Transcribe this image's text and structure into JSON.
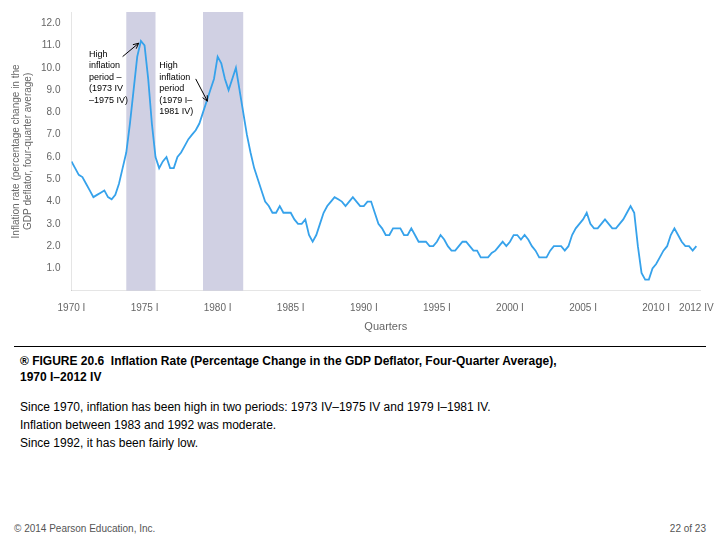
{
  "chart_data": {
    "type": "line",
    "title": "® FIGURE 20.6  Inflation Rate (Percentage Change in the GDP Deflator, Four-Quarter Average),\n1970 I–2012 IV",
    "subtitle": "Since 1970, inflation has been high in two periods: 1973 IV–1975 IV and 1979 I–1981 IV.\nInflation between 1983 and 1992 was moderate.\nSince 1992, it has been fairly low.",
    "footer": [
      "© 2014 Pearson Education, Inc.",
      "22 of 23"
    ],
    "x_label": "Quarters",
    "y_label": "Inflation rate (percentage change in the\nGDP deflator, four-quarter average)",
    "annotations": [
      {
        "text": "High\ninflation\nperiod –\n(1973 IV\n–1975 IV)"
      },
      {
        "text": "High\ninflation\nperiod\n(1979 I–\n1981 IV)"
      }
    ],
    "shaded_regions": [
      {
        "range": [
          1973.75,
          1975.75
        ],
        "color": "#b0b0d0"
      },
      {
        "range": [
          1979.0,
          1981.75
        ],
        "color": "#b0b0d0"
      }
    ],
    "grid": false,
    "xlim": [
      1970.0,
      2013.0
    ],
    "ylim": [
      0.0,
      12.5
    ],
    "xticks": [
      {
        "value": 1970.0,
        "label": "1970 I"
      },
      {
        "value": 1975.0,
        "label": "1975 I"
      },
      {
        "value": 1980.0,
        "label": "1980 I"
      },
      {
        "value": 1985.0,
        "label": "1985 I"
      },
      {
        "value": 1990.0,
        "label": "1990 I"
      },
      {
        "value": 1995.0,
        "label": "1995 I"
      },
      {
        "value": 2000.0,
        "label": "2000 I"
      },
      {
        "value": 2005.0,
        "label": "2005 I"
      },
      {
        "value": 2010.0,
        "label": "2010 I"
      },
      {
        "value": 2012.75,
        "label": "2012 IV"
      }
    ],
    "yticks": [
      {
        "value": 1.0,
        "label": "1.0"
      },
      {
        "value": 2.0,
        "label": "2.0"
      },
      {
        "value": 3.0,
        "label": "3.0"
      },
      {
        "value": 4.0,
        "label": "4.0"
      },
      {
        "value": 5.0,
        "label": "5.0"
      },
      {
        "value": 6.0,
        "label": "6.0"
      },
      {
        "value": 7.0,
        "label": "7.0"
      },
      {
        "value": 8.0,
        "label": "8.0"
      },
      {
        "value": 9.0,
        "label": "9.0"
      },
      {
        "value": 10.0,
        "label": "10.0"
      },
      {
        "value": 11.0,
        "label": "11.0"
      },
      {
        "value": 12.0,
        "label": "12.0"
      }
    ],
    "x": [
      1970.0,
      1970.25,
      1970.5,
      1970.75,
      1971.0,
      1971.25,
      1971.5,
      1971.75,
      1972.0,
      1972.25,
      1972.5,
      1972.75,
      1973.0,
      1973.25,
      1973.5,
      1973.75,
      1974.0,
      1974.25,
      1974.5,
      1974.75,
      1975.0,
      1975.25,
      1975.5,
      1975.75,
      1976.0,
      1976.25,
      1976.5,
      1976.75,
      1977.0,
      1977.25,
      1977.5,
      1977.75,
      1978.0,
      1978.25,
      1978.5,
      1978.75,
      1979.0,
      1979.25,
      1979.5,
      1979.75,
      1980.0,
      1980.25,
      1980.5,
      1980.75,
      1981.0,
      1981.25,
      1981.5,
      1981.75,
      1982.0,
      1982.25,
      1982.5,
      1982.75,
      1983.0,
      1983.25,
      1983.5,
      1983.75,
      1984.0,
      1984.25,
      1984.5,
      1984.75,
      1985.0,
      1985.25,
      1985.5,
      1985.75,
      1986.0,
      1986.25,
      1986.5,
      1986.75,
      1987.0,
      1987.25,
      1987.5,
      1987.75,
      1988.0,
      1988.25,
      1988.5,
      1988.75,
      1989.0,
      1989.25,
      1989.5,
      1989.75,
      1990.0,
      1990.25,
      1990.5,
      1990.75,
      1991.0,
      1991.25,
      1991.5,
      1991.75,
      1992.0,
      1992.25,
      1992.5,
      1992.75,
      1993.0,
      1993.25,
      1993.5,
      1993.75,
      1994.0,
      1994.25,
      1994.5,
      1994.75,
      1995.0,
      1995.25,
      1995.5,
      1995.75,
      1996.0,
      1996.25,
      1996.5,
      1996.75,
      1997.0,
      1997.25,
      1997.5,
      1997.75,
      1998.0,
      1998.25,
      1998.5,
      1998.75,
      1999.0,
      1999.25,
      1999.5,
      1999.75,
      2000.0,
      2000.25,
      2000.5,
      2000.75,
      2001.0,
      2001.25,
      2001.5,
      2001.75,
      2002.0,
      2002.25,
      2002.5,
      2002.75,
      2003.0,
      2003.25,
      2003.5,
      2003.75,
      2004.0,
      2004.25,
      2004.5,
      2004.75,
      2005.0,
      2005.25,
      2005.5,
      2005.75,
      2006.0,
      2006.25,
      2006.5,
      2006.75,
      2007.0,
      2007.25,
      2007.5,
      2007.75,
      2008.0,
      2008.25,
      2008.5,
      2008.75,
      2009.0,
      2009.25,
      2009.5,
      2009.75,
      2010.0,
      2010.25,
      2010.5,
      2010.75,
      2011.0,
      2011.25,
      2011.5,
      2011.75,
      2012.0,
      2012.25,
      2012.5,
      2012.75
    ],
    "values": [
      5.8,
      5.5,
      5.2,
      5.1,
      4.8,
      4.5,
      4.2,
      4.3,
      4.4,
      4.5,
      4.2,
      4.1,
      4.3,
      4.8,
      5.5,
      6.2,
      7.5,
      9.0,
      10.5,
      11.2,
      11.0,
      9.5,
      7.5,
      6.0,
      5.5,
      5.8,
      6.0,
      5.5,
      5.5,
      6.0,
      6.2,
      6.5,
      6.8,
      7.0,
      7.2,
      7.5,
      8.0,
      8.5,
      9.0,
      9.5,
      10.5,
      10.2,
      9.5,
      9.0,
      9.5,
      10.0,
      9.0,
      8.0,
      7.0,
      6.2,
      5.5,
      5.0,
      4.5,
      4.0,
      3.8,
      3.5,
      3.5,
      3.8,
      3.5,
      3.5,
      3.5,
      3.2,
      3.0,
      3.0,
      3.2,
      2.5,
      2.2,
      2.5,
      3.0,
      3.5,
      3.8,
      4.0,
      4.2,
      4.1,
      4.0,
      3.8,
      4.0,
      4.2,
      4.0,
      3.8,
      3.8,
      4.0,
      4.0,
      3.5,
      3.0,
      2.8,
      2.5,
      2.5,
      2.8,
      2.8,
      2.8,
      2.5,
      2.5,
      2.8,
      2.5,
      2.2,
      2.2,
      2.2,
      2.0,
      2.0,
      2.2,
      2.5,
      2.3,
      2.0,
      1.8,
      1.8,
      2.0,
      2.2,
      2.2,
      2.0,
      1.8,
      1.8,
      1.5,
      1.5,
      1.5,
      1.7,
      1.8,
      2.0,
      2.2,
      2.0,
      2.2,
      2.5,
      2.5,
      2.3,
      2.5,
      2.3,
      2.0,
      1.8,
      1.5,
      1.5,
      1.5,
      1.8,
      2.0,
      2.0,
      2.0,
      1.8,
      2.0,
      2.5,
      2.8,
      3.0,
      3.2,
      3.5,
      3.0,
      2.8,
      2.8,
      3.0,
      3.2,
      3.0,
      2.8,
      2.8,
      3.0,
      3.2,
      3.5,
      3.8,
      3.5,
      2.0,
      0.8,
      0.5,
      0.5,
      1.0,
      1.2,
      1.5,
      1.8,
      2.0,
      2.5,
      2.8,
      2.5,
      2.2,
      2.0,
      2.0,
      1.8,
      2.0
    ]
  }
}
